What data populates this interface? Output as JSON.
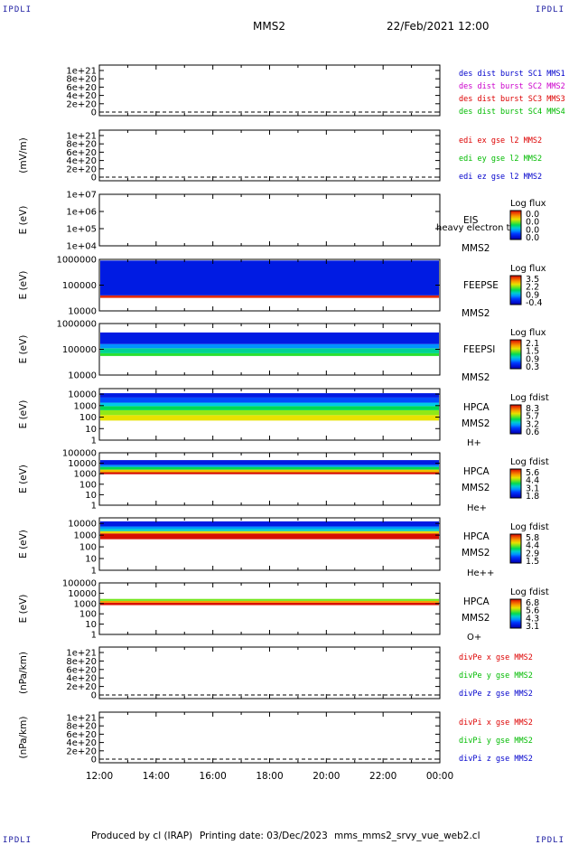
{
  "header": {
    "corner_tl": "IPDLI",
    "corner_tr": "IPDLI",
    "corner_bl": "IPDLI",
    "corner_br": "IPDLI",
    "spacecraft": "MMS2",
    "datetime": "22/Feb/2021 12:00"
  },
  "footer": {
    "produced_by": "Produced by cl (IRAP)",
    "printing_date": "Printing date: 03/Dec/2023",
    "script_name": "mms_mms2_srvy_vue_web2.cl"
  },
  "colors": {
    "blue": "#0000cc",
    "magenta": "#cc00cc",
    "red": "#dd0000",
    "green": "#00bb00",
    "spectrogram_fill": "#0033dd",
    "spectrogram_low": "#cc0000"
  },
  "chart_data": [
    {
      "type": "line",
      "panel": "des-dist",
      "ylabel": "",
      "yscale": "linear",
      "y_ticks": [
        "1e+21",
        "8e+20",
        "6e+20",
        "4e+20",
        "2e+20",
        "0"
      ],
      "ylim": [
        0,
        1e+21
      ],
      "dashed_zero": true,
      "x_ticks": [
        "12:00",
        "14:00",
        "16:00",
        "18:00",
        "20:00",
        "22:00",
        "00:00"
      ],
      "series": [
        {
          "name": "des dist burst SC1 MMS1",
          "color": "#0000cc",
          "values": []
        },
        {
          "name": "des dist burst SC2 MMS2",
          "color": "#cc00cc",
          "values": []
        },
        {
          "name": "des dist burst SC3 MMS3",
          "color": "#dd0000",
          "values": []
        },
        {
          "name": "des dist burst SC4 MMS4",
          "color": "#00bb00",
          "values": []
        }
      ]
    },
    {
      "type": "line",
      "panel": "edi-e",
      "ylabel": "(mV/m)",
      "yscale": "linear",
      "y_ticks": [
        "1e+21",
        "8e+20",
        "6e+20",
        "4e+20",
        "2e+20",
        "0"
      ],
      "ylim": [
        0,
        1e+21
      ],
      "dashed_zero": true,
      "series": [
        {
          "name": "edi ex gse l2 MMS2",
          "color": "#dd0000",
          "values": []
        },
        {
          "name": "edi ey gse l2 MMS2",
          "color": "#00bb00",
          "values": []
        },
        {
          "name": "edi ez gse l2 MMS2",
          "color": "#0000cc",
          "values": []
        }
      ]
    },
    {
      "type": "heatmap",
      "panel": "eis",
      "ylabel": "E (eV)",
      "yscale": "log",
      "y_ticks": [
        "1e+07",
        "1e+06",
        "1e+05",
        "1e+04"
      ],
      "ylim": [
        10000,
        10000000
      ],
      "instrument": "EIS",
      "spacecraft_label": "MMS2",
      "species": "heavy electron to",
      "colorbar_title": "Log flux",
      "colorbar_ticks": [
        "0.0",
        "0.0",
        "0.0",
        "0.0"
      ],
      "bands": []
    },
    {
      "type": "heatmap",
      "panel": "feeps-e",
      "ylabel": "E (eV)",
      "yscale": "log",
      "y_ticks": [
        "1000000",
        "100000",
        "10000"
      ],
      "ylim": [
        10000,
        1000000
      ],
      "instrument": "FEEPSE",
      "spacecraft_label": "MMS2",
      "colorbar_title": "Log flux",
      "colorbar_ticks": [
        "3.5",
        "2.2",
        "0.9",
        "-0.4"
      ],
      "bands": [
        {
          "from": 32000,
          "to": 40000,
          "level": 0.95
        },
        {
          "from": 40000,
          "to": 900000,
          "level": 0.12
        }
      ]
    },
    {
      "type": "heatmap",
      "panel": "feeps-i",
      "ylabel": "E (eV)",
      "yscale": "log",
      "y_ticks": [
        "1000000",
        "100000",
        "10000"
      ],
      "ylim": [
        10000,
        1000000
      ],
      "instrument": "FEEPSI",
      "spacecraft_label": "MMS2",
      "colorbar_title": "Log flux",
      "colorbar_ticks": [
        "2.1",
        "1.5",
        "0.9",
        "0.3"
      ],
      "bands": [
        {
          "from": 55000,
          "to": 70000,
          "level": 0.55
        },
        {
          "from": 70000,
          "to": 110000,
          "level": 0.45
        },
        {
          "from": 110000,
          "to": 160000,
          "level": 0.3
        },
        {
          "from": 160000,
          "to": 450000,
          "level": 0.12
        }
      ]
    },
    {
      "type": "heatmap",
      "panel": "hpca-h",
      "ylabel": "E (eV)",
      "yscale": "log",
      "y_ticks": [
        "10000",
        "1000",
        "100",
        "10",
        "1"
      ],
      "ylim": [
        1,
        30000
      ],
      "instrument": "HPCA",
      "spacecraft_label": "MMS2",
      "species": "H+",
      "colorbar_title": "Log fdist",
      "colorbar_ticks": [
        "8.3",
        "5.7",
        "3.2",
        "0.6"
      ],
      "bands": [
        {
          "from": 50,
          "to": 150,
          "level": 0.7
        },
        {
          "from": 150,
          "to": 400,
          "level": 0.62
        },
        {
          "from": 400,
          "to": 900,
          "level": 0.5
        },
        {
          "from": 900,
          "to": 1800,
          "level": 0.38
        },
        {
          "from": 1800,
          "to": 5000,
          "level": 0.22
        },
        {
          "from": 5000,
          "to": 12000,
          "level": 0.12
        }
      ]
    },
    {
      "type": "heatmap",
      "panel": "hpca-he",
      "ylabel": "E (eV)",
      "yscale": "log",
      "y_ticks": [
        "100000",
        "10000",
        "1000",
        "100",
        "10",
        "1"
      ],
      "ylim": [
        1,
        100000
      ],
      "instrument": "HPCA",
      "spacecraft_label": "MMS2",
      "species": "He+",
      "colorbar_title": "Log fdist",
      "colorbar_ticks": [
        "5.6",
        "4.4",
        "3.1",
        "1.8"
      ],
      "bands": [
        {
          "from": 900,
          "to": 1400,
          "level": 0.98
        },
        {
          "from": 1400,
          "to": 2500,
          "level": 0.75
        },
        {
          "from": 2500,
          "to": 4500,
          "level": 0.5
        },
        {
          "from": 4500,
          "to": 7000,
          "level": 0.3
        },
        {
          "from": 7000,
          "to": 20000,
          "level": 0.12
        }
      ]
    },
    {
      "type": "heatmap",
      "panel": "hpca-he2",
      "ylabel": "E (eV)",
      "yscale": "log",
      "y_ticks": [
        "10000",
        "1000",
        "100",
        "10",
        "1"
      ],
      "ylim": [
        1,
        30000
      ],
      "instrument": "HPCA",
      "spacecraft_label": "MMS2",
      "species": "He++",
      "colorbar_title": "Log fdist",
      "colorbar_ticks": [
        "5.8",
        "4.4",
        "2.9",
        "1.5"
      ],
      "bands": [
        {
          "from": 450,
          "to": 1400,
          "level": 0.98
        },
        {
          "from": 1400,
          "to": 2200,
          "level": 0.72
        },
        {
          "from": 2200,
          "to": 3500,
          "level": 0.4
        },
        {
          "from": 3500,
          "to": 5500,
          "level": 0.3
        },
        {
          "from": 5500,
          "to": 15000,
          "level": 0.12
        }
      ]
    },
    {
      "type": "heatmap",
      "panel": "hpca-o",
      "ylabel": "E (eV)",
      "yscale": "log",
      "y_ticks": [
        "100000",
        "10000",
        "1000",
        "100",
        "10",
        "1"
      ],
      "ylim": [
        1,
        100000
      ],
      "instrument": "HPCA",
      "spacecraft_label": "MMS2",
      "species": "O+",
      "colorbar_title": "Log fdist",
      "colorbar_ticks": [
        "6.8",
        "5.6",
        "4.3",
        "3.1"
      ],
      "bands": [
        {
          "from": 700,
          "to": 1200,
          "level": 0.98
        },
        {
          "from": 1200,
          "to": 1800,
          "level": 0.8
        },
        {
          "from": 1800,
          "to": 2800,
          "level": 0.6
        }
      ]
    },
    {
      "type": "line",
      "panel": "divpe",
      "ylabel": "(nPa/km)",
      "yscale": "linear",
      "y_ticks": [
        "1e+21",
        "8e+20",
        "6e+20",
        "4e+20",
        "2e+20",
        "0"
      ],
      "ylim": [
        0,
        1e+21
      ],
      "dashed_zero": true,
      "series": [
        {
          "name": "divPe x gse MMS2",
          "color": "#dd0000",
          "values": []
        },
        {
          "name": "divPe y gse MMS2",
          "color": "#00bb00",
          "values": []
        },
        {
          "name": "divPe z gse MMS2",
          "color": "#0000cc",
          "values": []
        }
      ]
    },
    {
      "type": "line",
      "panel": "divpi",
      "ylabel": "(nPa/km)",
      "yscale": "linear",
      "y_ticks": [
        "1e+21",
        "8e+20",
        "6e+20",
        "4e+20",
        "2e+20",
        "0"
      ],
      "ylim": [
        0,
        1e+21
      ],
      "dashed_zero": true,
      "series": [
        {
          "name": "divPi x gse MMS2",
          "color": "#dd0000",
          "values": []
        },
        {
          "name": "divPi y gse MMS2",
          "color": "#00bb00",
          "values": []
        },
        {
          "name": "divPi z gse MMS2",
          "color": "#0000cc",
          "values": []
        }
      ]
    }
  ],
  "x_axis": {
    "ticks": [
      "12:00",
      "14:00",
      "16:00",
      "18:00",
      "20:00",
      "22:00",
      "00:00"
    ],
    "range_hours": [
      12,
      24
    ]
  }
}
